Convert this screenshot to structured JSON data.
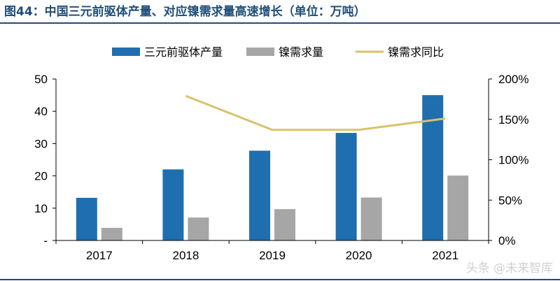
{
  "title": "图44：中国三元前驱体产量、对应镍需求量高速增长（单位：万吨）",
  "watermark": "头条 @未来智库",
  "colors": {
    "bar1": "#1f6eb0",
    "bar2": "#a6a6a6",
    "line": "#d9c26a",
    "axis": "#000000",
    "title": "#1f4e79"
  },
  "chart_data": {
    "type": "bar",
    "categories": [
      "2017",
      "2018",
      "2019",
      "2020",
      "2021"
    ],
    "series": [
      {
        "name": "三元前驱体产量",
        "type": "bar",
        "axis": "left",
        "values": [
          13.2,
          22.0,
          27.8,
          33.3,
          45.0
        ]
      },
      {
        "name": "镍需求量",
        "type": "bar",
        "axis": "left",
        "values": [
          3.9,
          7.1,
          9.7,
          13.3,
          20.1
        ]
      },
      {
        "name": "镍需求同比",
        "type": "line",
        "axis": "right",
        "values": [
          null,
          1.79,
          1.37,
          1.37,
          1.51
        ]
      }
    ],
    "y_left": {
      "min": 0,
      "max": 50,
      "ticks": [
        0,
        10,
        20,
        30,
        40,
        50
      ],
      "tick_labels": [
        "-",
        "10",
        "20",
        "30",
        "40",
        "50"
      ]
    },
    "y_right": {
      "min": 0,
      "max": 2,
      "ticks": [
        0,
        0.5,
        1,
        1.5,
        2
      ],
      "tick_labels": [
        "0%",
        "50%",
        "100%",
        "150%",
        "200%"
      ]
    },
    "legend_position": "top",
    "grid": false
  }
}
